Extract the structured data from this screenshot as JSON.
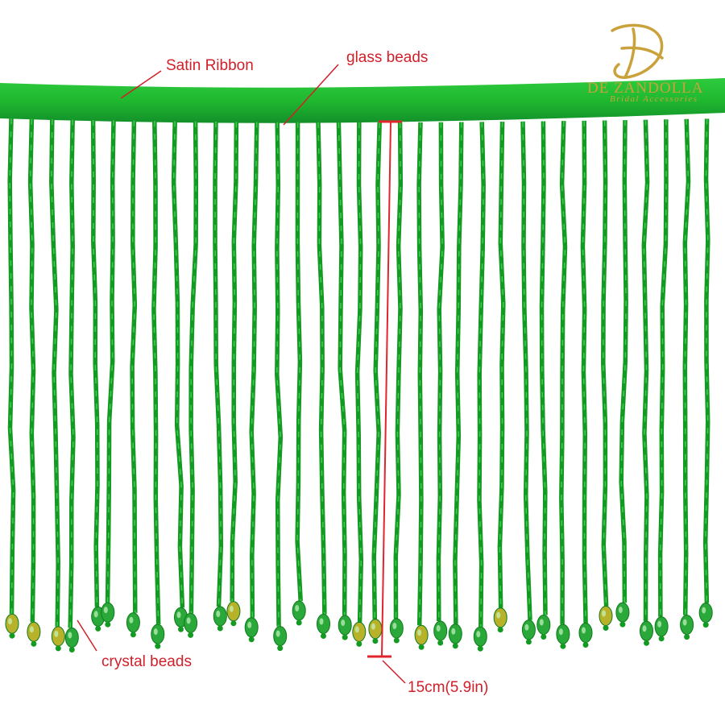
{
  "annotations": {
    "satin_ribbon": "Satin Ribbon",
    "glass_beads": "glass beads",
    "crystal_beads": "crystal beads",
    "length": "15cm(5.9in)"
  },
  "logo": {
    "brand": "DE ZANDOLLA",
    "tagline": "Bridal Accessories"
  },
  "colors": {
    "ribbon": "#1fb82f",
    "strand": "#139a22",
    "strand_highlight": "#4fd45a",
    "crystal": "#2aa83a",
    "crystal_iridescent": "#b8b22a",
    "annotation": "#d0202a",
    "logo_gold": "#c9a23b"
  }
}
